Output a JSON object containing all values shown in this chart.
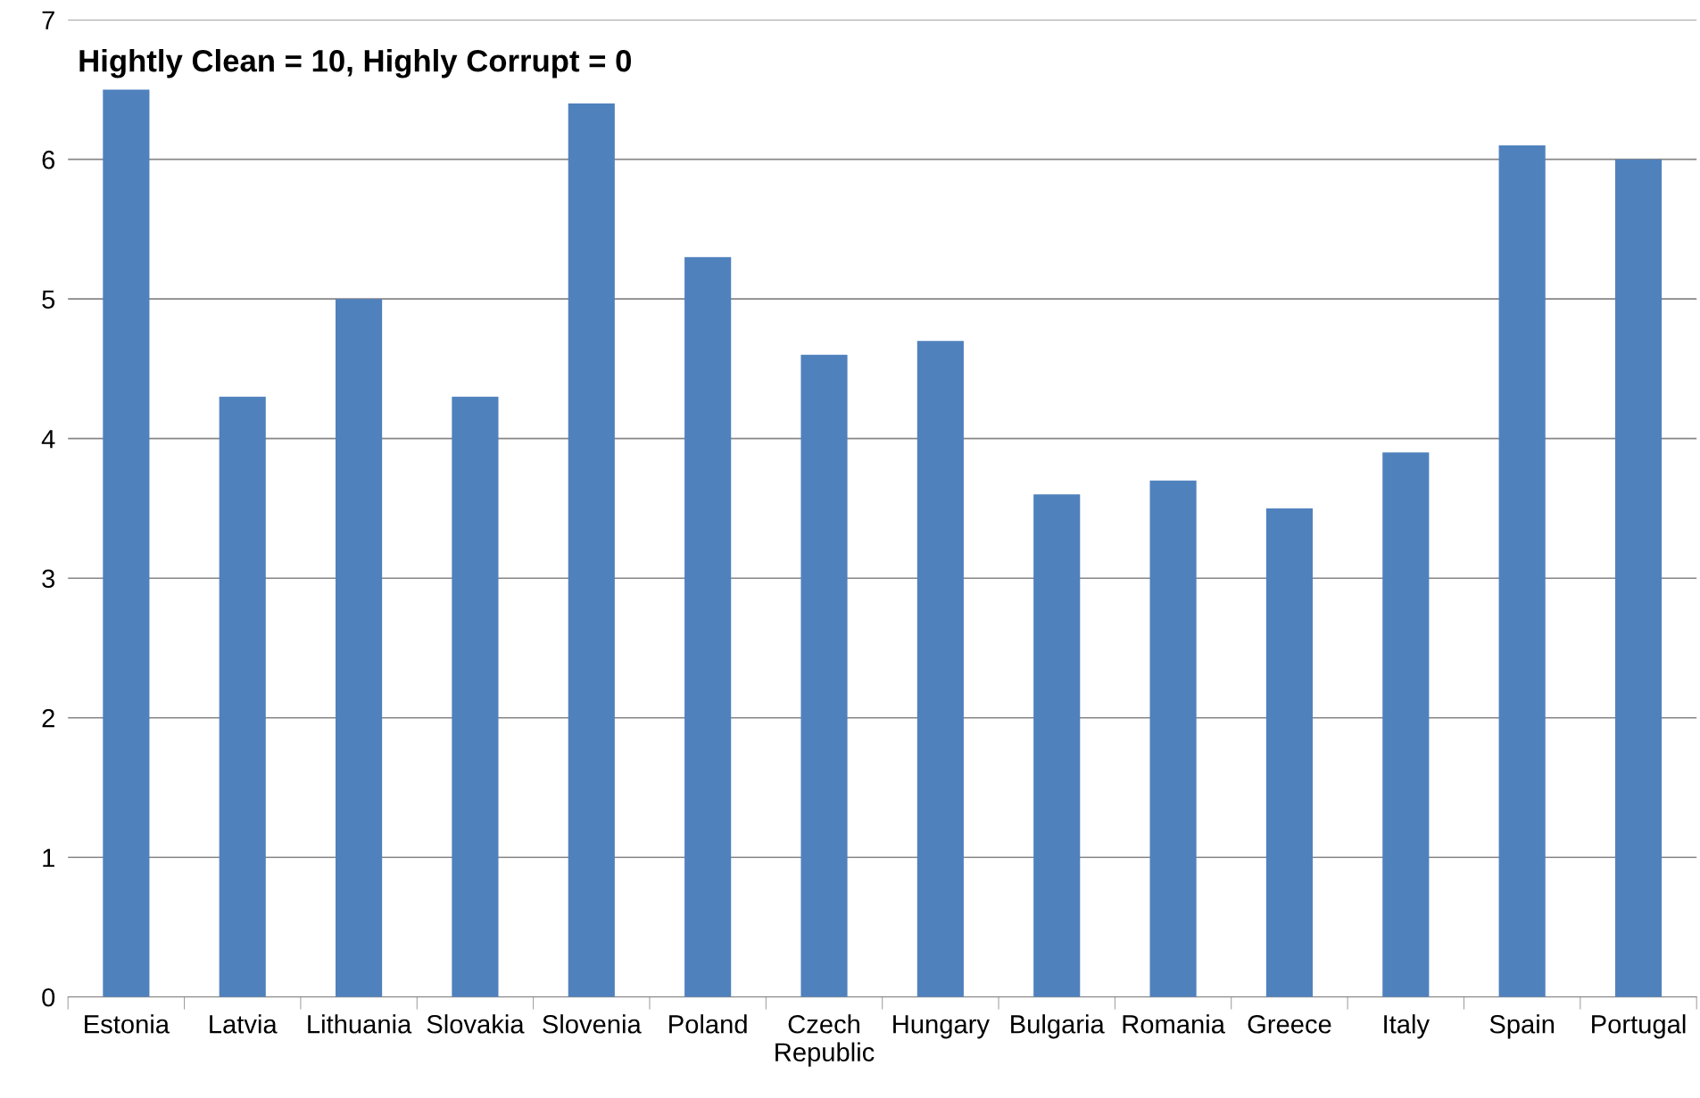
{
  "chart_data": {
    "type": "bar",
    "title": "Hightly Clean = 10, Highly Corrupt = 0",
    "categories": [
      "Estonia",
      "Latvia",
      "Lithuania",
      "Slovakia",
      "Slovenia",
      "Poland",
      "Czech\nRepublic",
      "Hungary",
      "Bulgaria",
      "Romania",
      "Greece",
      "Italy",
      "Spain",
      "Portugal"
    ],
    "values": [
      6.5,
      4.3,
      5.0,
      4.3,
      6.4,
      5.3,
      4.6,
      4.7,
      3.6,
      3.7,
      3.5,
      3.9,
      6.1,
      6.0
    ],
    "color": "#4f81bd",
    "ylim": [
      0,
      7
    ],
    "yticks": [
      0,
      1,
      2,
      3,
      4,
      5,
      6,
      7
    ],
    "grid": "y",
    "legend": false
  }
}
